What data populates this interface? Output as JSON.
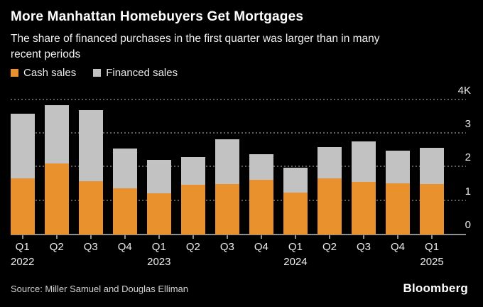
{
  "header": {
    "title": "More Manhattan Homebuyers Get Mortgages",
    "subtitle_line1": "The share of financed purchases in the first quarter was larger than in many",
    "subtitle_line2": "recent periods"
  },
  "legend": {
    "items": [
      {
        "label": "Cash sales",
        "color": "#e8912d"
      },
      {
        "label": "Financed sales",
        "color": "#c2c2c2"
      }
    ]
  },
  "footer": {
    "source": "Source: Miller Samuel and Douglas Elliman",
    "brand": "Bloomberg"
  },
  "colors": {
    "background": "#000000",
    "cash_orange": "#e8912d",
    "financed_gray": "#c2c2c2",
    "gridline": "#5c5c5c",
    "axis": "#8f8f8f",
    "text": "#ffffff"
  },
  "chart_data": {
    "type": "bar",
    "stacked": true,
    "title": "More Manhattan Homebuyers Get Mortgages",
    "subtitle": "The share of financed purchases in the first quarter was larger than in many recent periods",
    "unit": "sales (thousands shown as K on axis)",
    "categories": [
      "Q1 2022",
      "Q2 2022",
      "Q3 2022",
      "Q4 2022",
      "Q1 2023",
      "Q2 2023",
      "Q3 2023",
      "Q4 2023",
      "Q1 2024",
      "Q2 2024",
      "Q3 2024",
      "Q4 2024",
      "Q1 2025"
    ],
    "x_quarter_labels": [
      "Q1",
      "Q2",
      "Q3",
      "Q4",
      "Q1",
      "Q2",
      "Q3",
      "Q4",
      "Q1",
      "Q2",
      "Q3",
      "Q4",
      "Q1"
    ],
    "x_year_marks": [
      {
        "index": 0,
        "label": "2022"
      },
      {
        "index": 4,
        "label": "2023"
      },
      {
        "index": 8,
        "label": "2024"
      },
      {
        "index": 12,
        "label": "2025"
      }
    ],
    "series": [
      {
        "name": "Cash sales",
        "color": "#e8912d",
        "values": [
          1660,
          2110,
          1580,
          1370,
          1220,
          1480,
          1510,
          1630,
          1240,
          1660,
          1560,
          1530,
          1510
        ]
      },
      {
        "name": "Financed sales",
        "color": "#c2c2c2",
        "values": [
          1930,
          1730,
          2120,
          1180,
          1000,
          830,
          1330,
          770,
          740,
          940,
          1220,
          960,
          1060
        ]
      }
    ],
    "totals": [
      3590,
      3840,
      3700,
      2550,
      2220,
      2310,
      2840,
      2400,
      1980,
      2600,
      2780,
      2490,
      2570
    ],
    "y_axis": {
      "min": 0,
      "max": 4000,
      "ticks": [
        0,
        1000,
        2000,
        3000,
        4000
      ],
      "tick_labels": [
        "0",
        "1",
        "2",
        "3",
        "4K"
      ],
      "side": "right"
    },
    "grid": "horizontal-dotted",
    "legend_position": "top-left"
  }
}
